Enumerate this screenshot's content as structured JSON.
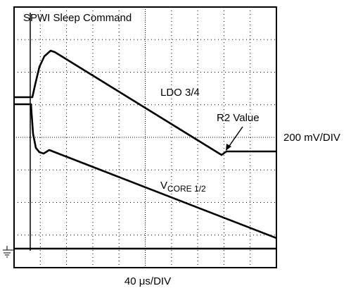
{
  "labels": {
    "command": "SPWI Sleep Command",
    "ldo": "LDO 3/4",
    "r2": "R2 Value",
    "vertical_scale": "200 mV/DIV",
    "vcore": "V",
    "vcore_sub": "CORE 1/2",
    "time_scale": "40 μs/DIV"
  }
}
